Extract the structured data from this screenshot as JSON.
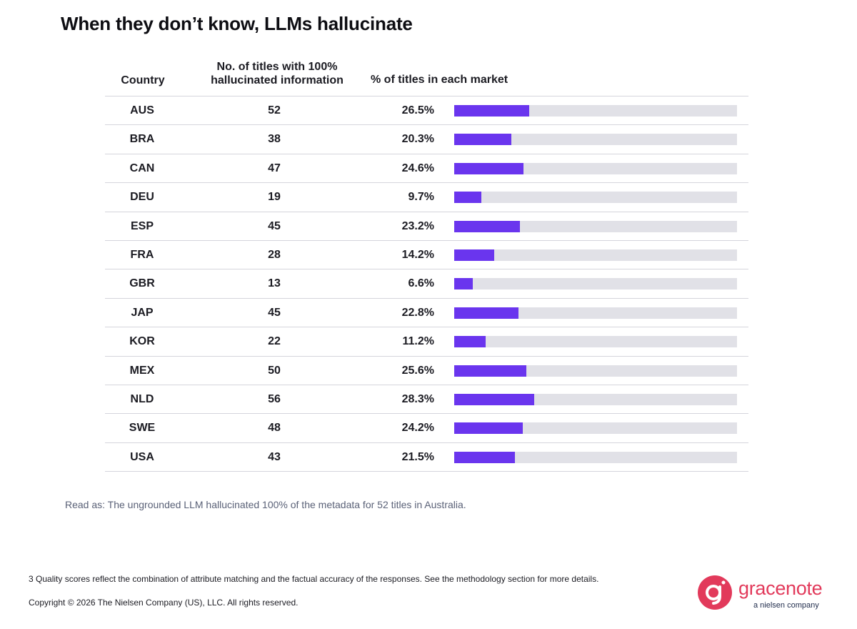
{
  "page": {
    "title": "When they don’t know, LLMs hallucinate",
    "read_as": "Read as: The ungrounded LLM hallucinated 100% of the metadata for 52 titles in Australia.",
    "footnote": "3  Quality scores reflect the combination of attribute matching and the factual accuracy of the responses. See the methodology section for more details.",
    "copyright": "Copyright © 2026 The Nielsen Company (US), LLC. All rights reserved."
  },
  "logo": {
    "name": "gracenote",
    "tagline": "a nielsen company"
  },
  "colors": {
    "bar": "#6a35ee",
    "track": "#e1e1e7",
    "brand": "#e23a5b"
  },
  "chart_data": {
    "type": "table",
    "headers": [
      "Country",
      "No. of titles with 100%\nhallucinated information",
      "% of titles in each market"
    ],
    "bar_max_percent": 100,
    "rows": [
      {
        "country": "AUS",
        "count": 52,
        "percent": 26.5,
        "percent_label": "26.5%"
      },
      {
        "country": "BRA",
        "count": 38,
        "percent": 20.3,
        "percent_label": "20.3%"
      },
      {
        "country": "CAN",
        "count": 47,
        "percent": 24.6,
        "percent_label": "24.6%"
      },
      {
        "country": "DEU",
        "count": 19,
        "percent": 9.7,
        "percent_label": "9.7%"
      },
      {
        "country": "ESP",
        "count": 45,
        "percent": 23.2,
        "percent_label": "23.2%"
      },
      {
        "country": "FRA",
        "count": 28,
        "percent": 14.2,
        "percent_label": "14.2%"
      },
      {
        "country": "GBR",
        "count": 13,
        "percent": 6.6,
        "percent_label": "6.6%"
      },
      {
        "country": "JAP",
        "count": 45,
        "percent": 22.8,
        "percent_label": "22.8%"
      },
      {
        "country": "KOR",
        "count": 22,
        "percent": 11.2,
        "percent_label": "11.2%"
      },
      {
        "country": "MEX",
        "count": 50,
        "percent": 25.6,
        "percent_label": "25.6%"
      },
      {
        "country": "NLD",
        "count": 56,
        "percent": 28.3,
        "percent_label": "28.3%"
      },
      {
        "country": "SWE",
        "count": 48,
        "percent": 24.2,
        "percent_label": "24.2%"
      },
      {
        "country": "USA",
        "count": 43,
        "percent": 21.5,
        "percent_label": "21.5%"
      }
    ]
  }
}
